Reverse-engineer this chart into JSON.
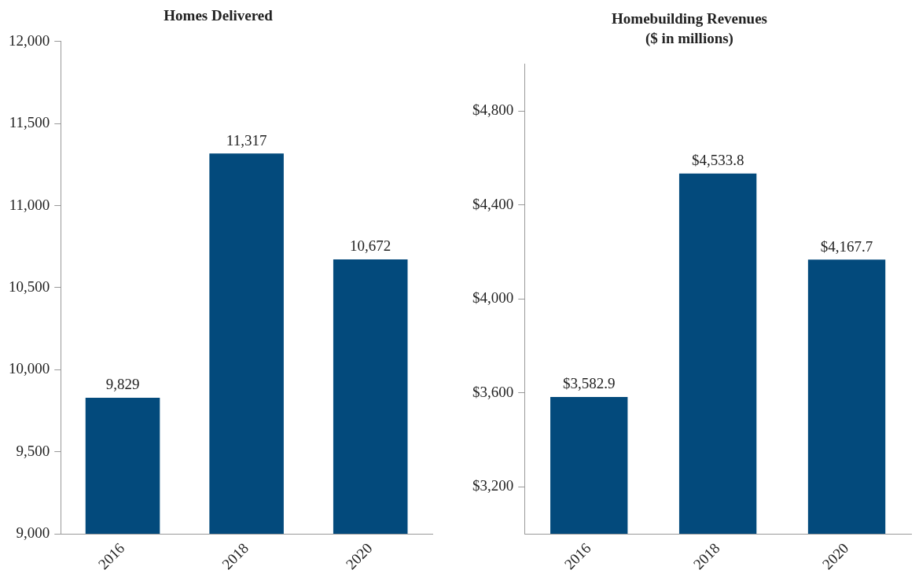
{
  "chart_data": [
    {
      "type": "bar",
      "title": "Homes Delivered",
      "categories": [
        "2016",
        "2018",
        "2020"
      ],
      "values": [
        9829,
        11317,
        10672
      ],
      "color": "#034a7c",
      "value_labels": [
        "9,829",
        "11,317",
        "10,672"
      ],
      "ylim": [
        9000,
        12000
      ],
      "yticks": [
        {
          "value": 9000,
          "label": "9,000"
        },
        {
          "value": 9500,
          "label": "9,500"
        },
        {
          "value": 10000,
          "label": "10,000"
        },
        {
          "value": 10500,
          "label": "10,500"
        },
        {
          "value": 11000,
          "label": "11,000"
        },
        {
          "value": 11500,
          "label": "11,500"
        },
        {
          "value": 12000,
          "label": "12,000"
        }
      ],
      "grid": false,
      "legend": false
    },
    {
      "type": "bar",
      "title": "Homebuilding Revenues",
      "subtitle": "($ in millions)",
      "categories": [
        "2016",
        "2018",
        "2020"
      ],
      "values": [
        3582.9,
        4533.8,
        4167.7
      ],
      "color": "#034a7c",
      "value_labels": [
        "$3,582.9",
        "$4,533.8",
        "$4,167.7"
      ],
      "ylim": [
        3000,
        5000
      ],
      "yticks": [
        {
          "value": 3200,
          "label": "$3,200"
        },
        {
          "value": 3600,
          "label": "$3,600"
        },
        {
          "value": 4000,
          "label": "$4,000"
        },
        {
          "value": 4400,
          "label": "$4,400"
        },
        {
          "value": 4800,
          "label": "$4,800"
        }
      ],
      "grid": false,
      "legend": false
    }
  ]
}
